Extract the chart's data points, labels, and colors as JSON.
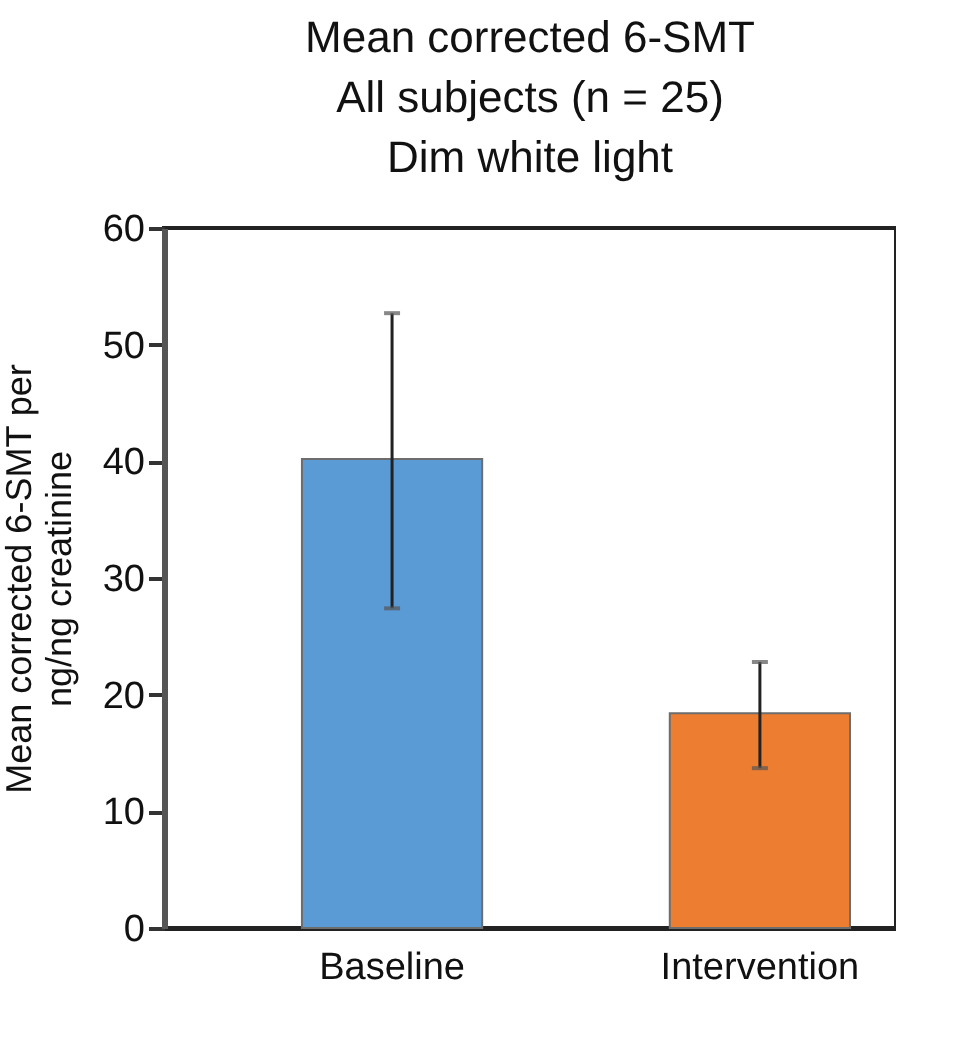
{
  "chart_data": {
    "type": "bar",
    "title": "Mean corrected 6-SMT\nAll subjects (n = 25)\nDim white light",
    "ylabel": "Mean corrected 6-SMT per\nng/ng creatinine",
    "categories": [
      "Baseline",
      "Intervention"
    ],
    "values": [
      40.2,
      18.4
    ],
    "colors": [
      "#5b9bd5",
      "#ed7d31"
    ],
    "errors": [
      [
        27.4,
        52.7
      ],
      [
        13.7,
        22.8
      ]
    ],
    "ylim": [
      0,
      60
    ],
    "yticks": [
      0,
      10,
      20,
      30,
      40,
      50,
      60
    ],
    "grid": false,
    "legend": false
  }
}
